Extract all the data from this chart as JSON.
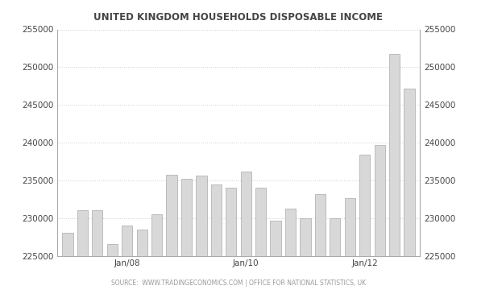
{
  "title": "UNITED KINGDOM HOUSEHOLDS DISPOSABLE INCOME",
  "source_text": "SOURCE:  WWW.TRADINGECONOMICS.COM | OFFICE FOR NATIONAL STATISTICS, UK",
  "values": [
    228000,
    231000,
    231000,
    226500,
    229000,
    228500,
    230500,
    235700,
    235200,
    235600,
    234500,
    234000,
    236200,
    234000,
    229700,
    231200,
    230000,
    233200,
    230000,
    232600,
    238400,
    239700,
    251700,
    247200
  ],
  "jan08_idx": 4,
  "jan10_idx": 12,
  "jan12_idx": 20,
  "ylim": [
    225000,
    255000
  ],
  "yticks": [
    225000,
    230000,
    235000,
    240000,
    245000,
    250000,
    255000
  ],
  "bar_color_top": "#d8d8d8",
  "bar_color_bottom": "#f0f0f0",
  "bar_edge_color": "#999999",
  "bg_color": "#ffffff",
  "grid_color": "#cccccc",
  "title_color": "#444444",
  "source_color": "#999999",
  "title_fontsize": 8.5,
  "tick_fontsize": 7.5,
  "source_fontsize": 5.5
}
